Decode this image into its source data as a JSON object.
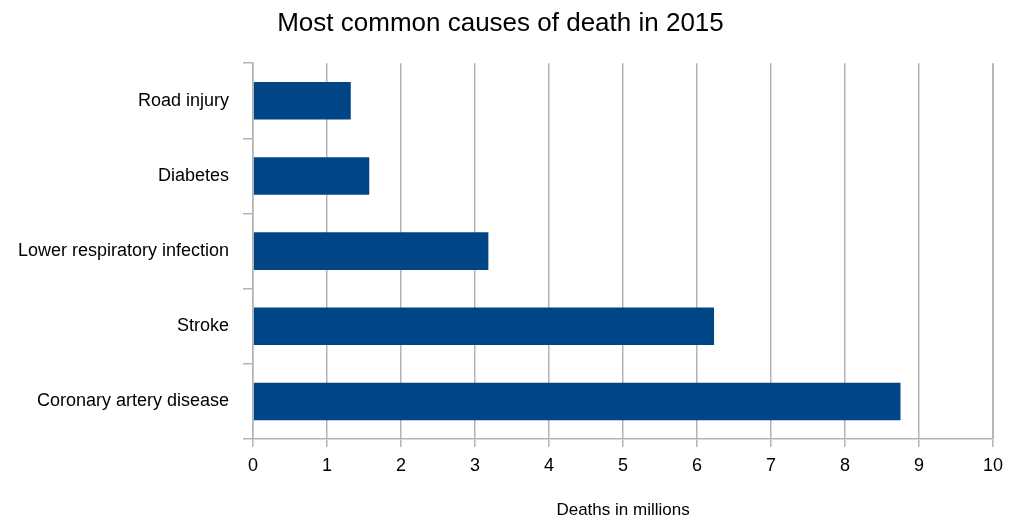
{
  "chart_data": {
    "type": "bar",
    "orientation": "horizontal",
    "title": "Most common causes of death in 2015",
    "xlabel": "Deaths in millions",
    "categories": [
      "Road injury",
      "Diabetes",
      "Lower respiratory infection",
      "Stroke",
      "Coronary artery disease"
    ],
    "values": [
      1.32,
      1.57,
      3.18,
      6.23,
      8.75
    ],
    "color": "#004586",
    "xlim": [
      0,
      10
    ],
    "xticks": [
      0,
      1,
      2,
      3,
      4,
      5,
      6,
      7,
      8,
      9,
      10
    ],
    "grid": "x",
    "legend": false
  }
}
